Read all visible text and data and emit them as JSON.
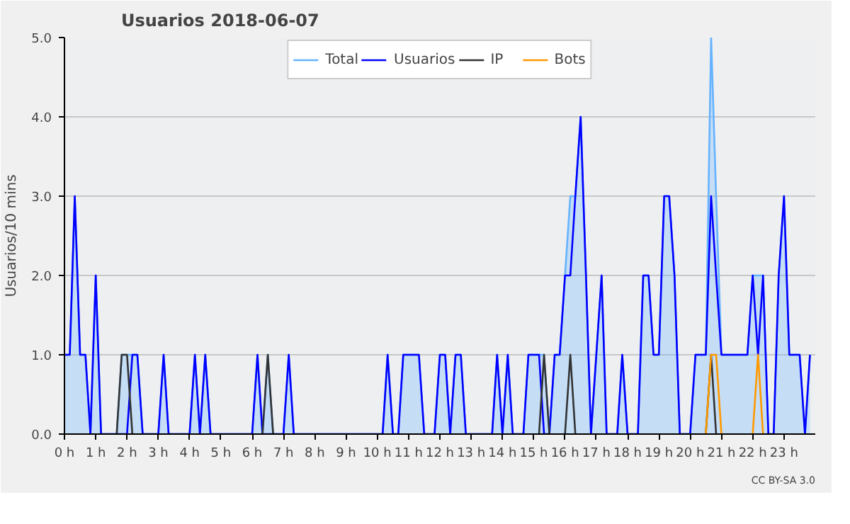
{
  "chart_data": {
    "type": "line",
    "title": "Usuarios  2018-06-07",
    "ylabel": "Usuarios/10 mins",
    "annotations": [
      "CC BY-SA 3.0"
    ],
    "x": [
      0,
      0.17,
      0.33,
      0.5,
      0.67,
      0.83,
      1,
      1.17,
      1.33,
      1.5,
      1.67,
      1.83,
      2,
      2.17,
      2.33,
      2.5,
      2.67,
      2.83,
      3,
      3.17,
      3.33,
      3.5,
      3.67,
      3.83,
      4,
      4.17,
      4.33,
      4.5,
      4.67,
      4.83,
      5,
      5.17,
      5.33,
      5.5,
      5.67,
      5.83,
      6,
      6.17,
      6.33,
      6.5,
      6.67,
      6.83,
      7,
      7.17,
      7.33,
      7.5,
      7.67,
      7.83,
      8,
      8.17,
      8.33,
      8.5,
      8.67,
      8.83,
      9,
      9.17,
      9.33,
      9.5,
      9.67,
      9.83,
      10,
      10.17,
      10.33,
      10.5,
      10.67,
      10.83,
      11,
      11.17,
      11.33,
      11.5,
      11.67,
      11.83,
      12,
      12.17,
      12.33,
      12.5,
      12.67,
      12.83,
      13,
      13.17,
      13.33,
      13.5,
      13.67,
      13.83,
      14,
      14.17,
      14.33,
      14.5,
      14.67,
      14.83,
      15,
      15.17,
      15.33,
      15.5,
      15.67,
      15.83,
      16,
      16.17,
      16.33,
      16.5,
      16.67,
      16.83,
      17,
      17.17,
      17.33,
      17.5,
      17.67,
      17.83,
      18,
      18.17,
      18.33,
      18.5,
      18.67,
      18.83,
      19,
      19.17,
      19.33,
      19.5,
      19.67,
      19.83,
      20,
      20.17,
      20.33,
      20.5,
      20.67,
      20.83,
      21,
      21.17,
      21.33,
      21.5,
      21.67,
      21.83,
      22,
      22.17,
      22.33,
      22.5,
      22.67,
      22.83,
      23,
      23.17,
      23.33,
      23.5,
      23.67,
      23.83
    ],
    "xlim": [
      0,
      24
    ],
    "xticks": [
      {
        "value": 0,
        "label": "0 h"
      },
      {
        "value": 1,
        "label": "1 h"
      },
      {
        "value": 2,
        "label": "2 h"
      },
      {
        "value": 3,
        "label": "3 h"
      },
      {
        "value": 4,
        "label": "4 h"
      },
      {
        "value": 5,
        "label": "5 h"
      },
      {
        "value": 6,
        "label": "6 h"
      },
      {
        "value": 7,
        "label": "7 h"
      },
      {
        "value": 8,
        "label": "8 h"
      },
      {
        "value": 9,
        "label": "9 h"
      },
      {
        "value": 10,
        "label": "10 h"
      },
      {
        "value": 11,
        "label": "11 h"
      },
      {
        "value": 12,
        "label": "12 h"
      },
      {
        "value": 13,
        "label": "13 h"
      },
      {
        "value": 14,
        "label": "14 h"
      },
      {
        "value": 15,
        "label": "15 h"
      },
      {
        "value": 16,
        "label": "16 h"
      },
      {
        "value": 17,
        "label": "17 h"
      },
      {
        "value": 18,
        "label": "18 h"
      },
      {
        "value": 19,
        "label": "19 h"
      },
      {
        "value": 20,
        "label": "20 h"
      },
      {
        "value": 21,
        "label": "21 h"
      },
      {
        "value": 22,
        "label": "22 h"
      },
      {
        "value": 23,
        "label": "23 h"
      }
    ],
    "ylim": [
      0,
      5
    ],
    "yticks": [
      {
        "value": 0,
        "label": "0.0"
      },
      {
        "value": 1,
        "label": "1.0"
      },
      {
        "value": 2,
        "label": "2.0"
      },
      {
        "value": 3,
        "label": "3.0"
      },
      {
        "value": 4,
        "label": "4.0"
      },
      {
        "value": 5,
        "label": "5.0"
      }
    ],
    "grid": "y",
    "legend": "top",
    "series": [
      {
        "name": "Total",
        "type": "area",
        "color": "#66b3ff",
        "values": [
          1,
          1,
          3,
          1,
          1,
          0,
          2,
          0,
          0,
          0,
          0,
          1,
          1,
          1,
          1,
          0,
          0,
          0,
          0,
          1,
          0,
          0,
          0,
          0,
          0,
          1,
          0,
          1,
          0,
          0,
          0,
          0,
          0,
          0,
          0,
          0,
          0,
          1,
          0,
          1,
          0,
          0,
          0,
          1,
          0,
          0,
          0,
          0,
          0,
          0,
          0,
          0,
          0,
          0,
          0,
          0,
          0,
          0,
          0,
          0,
          0,
          0,
          1,
          0,
          0,
          1,
          1,
          1,
          1,
          0,
          0,
          0,
          1,
          1,
          0,
          1,
          1,
          0,
          0,
          0,
          0,
          0,
          0,
          1,
          0,
          1,
          0,
          0,
          0,
          1,
          1,
          1,
          1,
          0,
          1,
          1,
          2,
          3,
          3,
          4,
          2,
          0,
          1,
          2,
          0,
          0,
          0,
          1,
          0,
          0,
          0,
          2,
          2,
          1,
          1,
          3,
          3,
          2,
          0,
          0,
          0,
          1,
          1,
          1,
          5,
          3,
          1,
          1,
          1,
          1,
          1,
          1,
          2,
          2,
          2,
          0,
          0,
          2,
          3,
          1,
          1,
          1,
          0,
          1
        ]
      },
      {
        "name": "Usuarios",
        "color": "#0000ff",
        "values": [
          1,
          1,
          3,
          1,
          1,
          0,
          2,
          0,
          0,
          0,
          0,
          0,
          0,
          1,
          1,
          0,
          0,
          0,
          0,
          1,
          0,
          0,
          0,
          0,
          0,
          1,
          0,
          1,
          0,
          0,
          0,
          0,
          0,
          0,
          0,
          0,
          0,
          1,
          0,
          0,
          0,
          0,
          0,
          1,
          0,
          0,
          0,
          0,
          0,
          0,
          0,
          0,
          0,
          0,
          0,
          0,
          0,
          0,
          0,
          0,
          0,
          0,
          1,
          0,
          0,
          1,
          1,
          1,
          1,
          0,
          0,
          0,
          1,
          1,
          0,
          1,
          1,
          0,
          0,
          0,
          0,
          0,
          0,
          1,
          0,
          1,
          0,
          0,
          0,
          1,
          1,
          1,
          0,
          0,
          1,
          1,
          2,
          2,
          3,
          4,
          2,
          0,
          1,
          2,
          0,
          0,
          0,
          1,
          0,
          0,
          0,
          2,
          2,
          1,
          1,
          3,
          3,
          2,
          0,
          0,
          0,
          1,
          1,
          1,
          3,
          2,
          1,
          1,
          1,
          1,
          1,
          1,
          2,
          1,
          2,
          0,
          0,
          2,
          3,
          1,
          1,
          1,
          0,
          1
        ]
      },
      {
        "name": "IP",
        "color": "#333333",
        "values": [
          null,
          null,
          null,
          null,
          null,
          null,
          null,
          null,
          null,
          null,
          0,
          1,
          1,
          0,
          null,
          null,
          null,
          null,
          null,
          null,
          null,
          null,
          null,
          null,
          null,
          null,
          null,
          null,
          null,
          null,
          null,
          null,
          null,
          null,
          null,
          null,
          null,
          null,
          0,
          1,
          0,
          null,
          null,
          null,
          null,
          null,
          null,
          null,
          null,
          null,
          null,
          null,
          null,
          null,
          null,
          null,
          null,
          null,
          null,
          null,
          null,
          null,
          null,
          null,
          null,
          null,
          null,
          null,
          null,
          null,
          null,
          null,
          null,
          null,
          null,
          null,
          null,
          null,
          null,
          null,
          null,
          null,
          null,
          null,
          null,
          null,
          null,
          null,
          null,
          null,
          null,
          0,
          1,
          0,
          null,
          null,
          0,
          1,
          0,
          null,
          null,
          null,
          null,
          null,
          null,
          null,
          null,
          null,
          null,
          null,
          null,
          null,
          null,
          null,
          null,
          null,
          null,
          null,
          null,
          null,
          null,
          null,
          null,
          0,
          1,
          0,
          null,
          null,
          null,
          null,
          null,
          null,
          null,
          null,
          null,
          null,
          null,
          null,
          null,
          null,
          null,
          null,
          null,
          null
        ]
      },
      {
        "name": "Bots",
        "color": "#ff9900",
        "values": [
          null,
          null,
          null,
          null,
          null,
          null,
          null,
          null,
          null,
          null,
          null,
          null,
          null,
          null,
          null,
          null,
          null,
          null,
          null,
          null,
          null,
          null,
          null,
          null,
          null,
          null,
          null,
          null,
          null,
          null,
          null,
          null,
          null,
          null,
          null,
          null,
          null,
          null,
          null,
          null,
          null,
          null,
          null,
          null,
          null,
          null,
          null,
          null,
          null,
          null,
          null,
          null,
          null,
          null,
          null,
          null,
          null,
          null,
          null,
          null,
          null,
          null,
          null,
          null,
          null,
          null,
          null,
          null,
          null,
          null,
          null,
          null,
          null,
          null,
          null,
          null,
          null,
          null,
          null,
          null,
          null,
          null,
          null,
          null,
          null,
          null,
          null,
          null,
          null,
          null,
          null,
          null,
          null,
          null,
          null,
          null,
          null,
          null,
          null,
          null,
          null,
          null,
          null,
          null,
          null,
          null,
          null,
          null,
          null,
          null,
          null,
          null,
          null,
          null,
          null,
          null,
          null,
          null,
          null,
          null,
          null,
          null,
          null,
          0,
          1,
          1,
          0,
          null,
          null,
          null,
          null,
          null,
          0,
          1,
          0,
          null,
          null,
          null,
          null,
          null,
          null,
          null,
          null,
          null
        ]
      }
    ]
  }
}
